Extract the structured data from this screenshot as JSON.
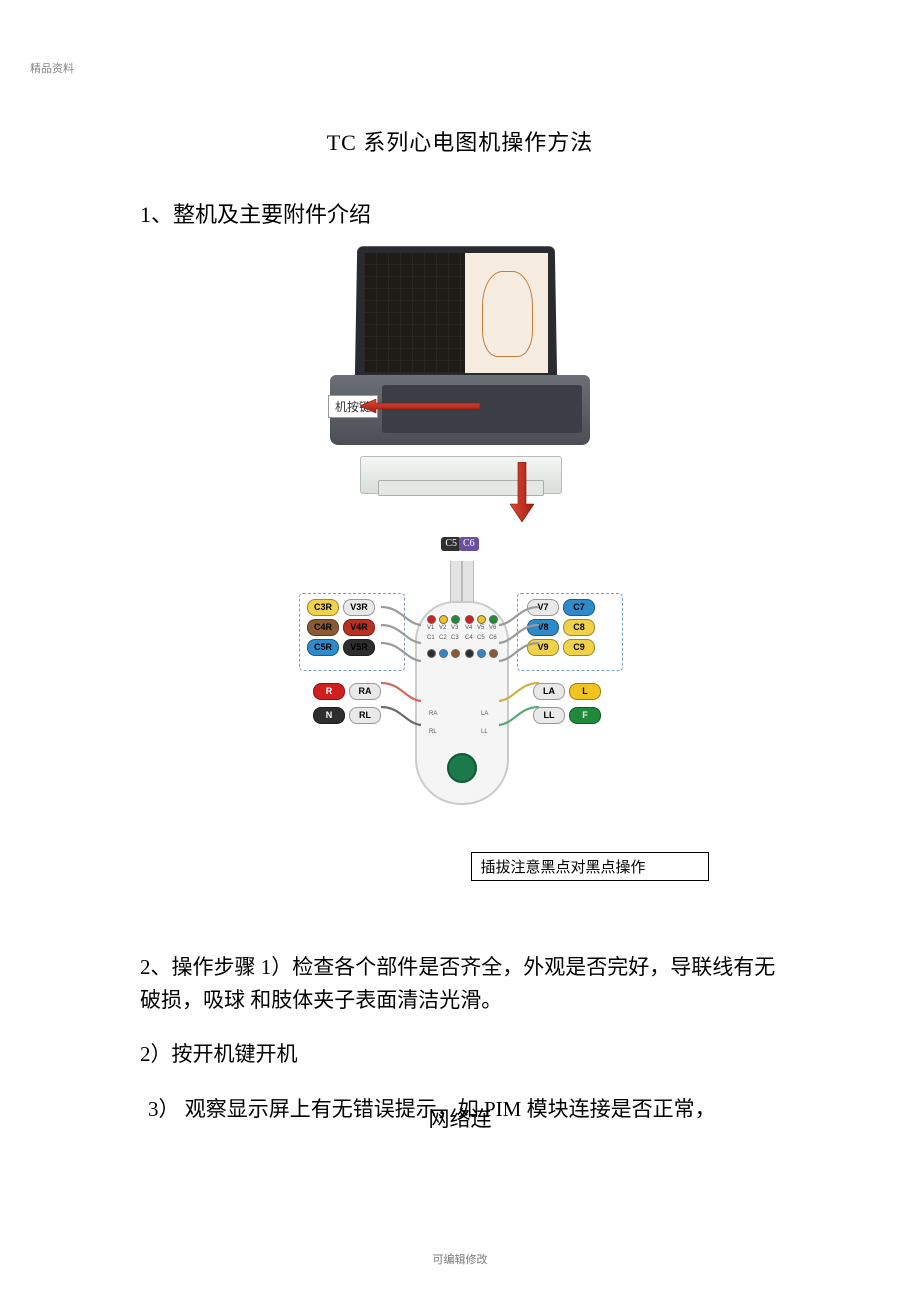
{
  "watermark": "精品资料",
  "title": "TC 系列心电图机操作方法",
  "section1_heading": "1、整机及主要附件介绍",
  "device_button_label": "机按键",
  "chips": {
    "c5": "C5",
    "c6": "C6"
  },
  "module": {
    "left_top": [
      {
        "t": "C3R",
        "c": "#f0d24a"
      },
      {
        "t": "V3R",
        "c": "#e9e9e9"
      },
      {
        "t": "C4R",
        "c": "#8a5a34"
      },
      {
        "t": "V4R",
        "c": "#b83224"
      },
      {
        "t": "C5R",
        "c": "#2f8acb"
      },
      {
        "t": "V5R",
        "c": "#2e2e2e"
      }
    ],
    "right_top": [
      {
        "t": "V7",
        "c": "#e9e9e9"
      },
      {
        "t": "C7",
        "c": "#2f8acb"
      },
      {
        "t": "V8",
        "c": "#2f8acb"
      },
      {
        "t": "C8",
        "c": "#f0d24a"
      },
      {
        "t": "V9",
        "c": "#f0d24a"
      },
      {
        "t": "C9",
        "c": "#f0d24a"
      }
    ],
    "limb_left": [
      {
        "t": "R",
        "c": "#cf1f1f",
        "tc": "#fff"
      },
      {
        "t": "RA",
        "c": "#e9e9e9"
      },
      {
        "t": "N",
        "c": "#2e2e2e",
        "tc": "#fff"
      },
      {
        "t": "RL",
        "c": "#e9e9e9"
      }
    ],
    "limb_right": [
      {
        "t": "LA",
        "c": "#e9e9e9"
      },
      {
        "t": "L",
        "c": "#f0c31f"
      },
      {
        "t": "LL",
        "c": "#e9e9e9"
      },
      {
        "t": "F",
        "c": "#1f8a3a",
        "tc": "#fff"
      }
    ],
    "mini_left": [
      "V1",
      "V2",
      "V3",
      "C1",
      "C2",
      "C3"
    ],
    "mini_right": [
      "V4",
      "V5",
      "V6",
      "C4",
      "C5",
      "C6"
    ],
    "mini_bottom_left": "RA",
    "mini_bottom_right": "LA",
    "mini_bottom_r2l": "RL",
    "mini_bottom_r2r": "LL",
    "port_colors_left": [
      "#cf1f1f",
      "#f0c31f",
      "#1f8a3a",
      "#2e2e2e",
      "#2f8acb",
      "#8a5a34"
    ],
    "port_colors_right": [
      "#cf1f1f",
      "#f0c31f",
      "#1f8a3a",
      "#2e2e2e",
      "#2f8acb",
      "#8a5a34"
    ]
  },
  "caption": "插拔注意黑点对黑点操作",
  "para1": "2、操作步骤 1）检查各个部件是否齐全，外观是否完好，导联线有无破损，吸球 和肢体夹子表面清洁光滑。",
  "para2": "2）按开机键开机",
  "para3a": " 3）    观察显示屏上有无错误提示，如 PIM 模块连接是否正常，",
  "para3b": "网络连",
  "footer": "可编辑修改"
}
